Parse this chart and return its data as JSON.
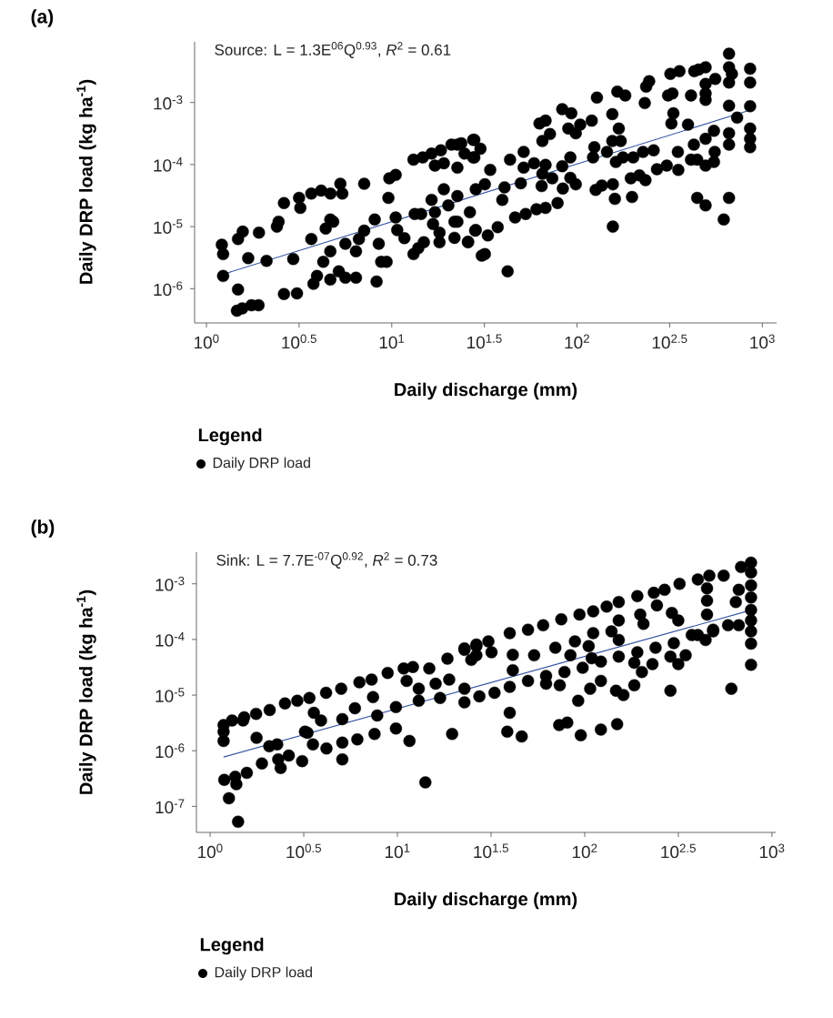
{
  "chart_data": [
    {
      "type": "scatter",
      "title": "(a)",
      "xlabel": "Daily discharge (mm)",
      "ylabel": "Daily DRP load (kg ha$^{-1}$)",
      "legend_title": "Legend",
      "legend": "bottom",
      "log": "xy",
      "annotations": [
        "Source: L = 1.3E$^{06}$Q$^{0.93}$, *R*$^{2}$ = 0.61"
      ],
      "xlim": [
        0.863,
        1194
      ],
      "ylim": [
        2.8e-07,
        0.0095
      ],
      "xticks": [
        {
          "value": 1,
          "label": "10$^{0}$"
        },
        {
          "value": 3.162,
          "label": "10$^{0.5}$"
        },
        {
          "value": 10,
          "label": "10$^{1}$"
        },
        {
          "value": 31.62,
          "label": "10$^{1.5}$"
        },
        {
          "value": 100,
          "label": "10$^{2}$"
        },
        {
          "value": 316.2,
          "label": "10$^{2.5}$"
        },
        {
          "value": 1000,
          "label": "10$^{3}$"
        }
      ],
      "yticks": [
        {
          "value": 1e-06,
          "label": "10$^{-6}$"
        },
        {
          "value": 1e-05,
          "label": "10$^{-5}$"
        },
        {
          "value": 0.0001,
          "label": "10$^{-4}$"
        },
        {
          "value": 0.001,
          "label": "10$^{-3}$"
        }
      ],
      "series": [
        {
          "name": "Daily DRP load",
          "color": "#000000",
          "marker": "circle",
          "x": [
            1.21,
            1.23,
            1.23,
            1.48,
            1.57,
            1.68,
            1.48,
            1.46,
            1.56,
            1.75,
            1.91,
            1.92,
            2.11,
            2.4,
            2.45,
            2.62,
            2.94,
            2.62,
            3.08,
            3.16,
            3.21,
            3.68,
            3.68,
            4.16,
            4.67,
            5.28,
            5.41,
            7.1,
            3.78,
            3.95,
            4.27,
            4.4,
            4.66,
            4.83,
            4.66,
            4.66,
            5.18,
            5.62,
            6.41,
            6.41,
            5.62,
            6.65,
            7.1,
            8.09,
            8.51,
            8.28,
            8.77,
            9.38,
            9.59,
            9.7,
            10.5,
            10.5,
            11.7,
            10.7,
            13.1,
            14.7,
            16.4,
            18.4,
            21.0,
            23.7,
            27.9,
            17.1,
            19.1,
            22.6,
            24.7,
            27.9,
            16.4,
            19.1,
            22.6,
            20.2,
            17.1,
            16.7,
            21.8,
            18.1,
            18.1,
            21.8,
            26.4,
            25.8,
            28.4,
            28.4,
            13.1,
            14.9,
            13.3,
            14.4,
            30.6,
            13.9,
            22.6,
            27.5,
            30.1,
            27.5,
            34.0,
            43.5,
            51.5,
            51.5,
            31.8,
            22.6,
            28.2,
            33.0,
            25.8,
            31.8,
            37.3,
            42.2,
            39.5,
            40.6,
            46.3,
            52.8,
            60.4,
            67.6,
            78.5,
            49.7,
            64.4,
            58.6,
            65.0,
            67.6,
            73.5,
            83.2,
            83.8,
            92.0,
            92.0,
            98.4,
            62.7,
            67.6,
            71.4,
            65.0,
            83.2,
            93.1,
            89.7,
            98.4,
            104,
            120,
            128,
            155,
            165,
            182,
            168,
            155,
            172,
            124,
            122,
            145,
            162,
            177,
            201,
            227,
            259,
            126,
            136,
            156,
            160,
            156,
            198,
            195,
            217,
            234,
            270,
            305,
            352,
            350,
            232,
            236,
            245,
            310,
            327,
            319,
            357,
            323,
            331,
            397,
            412,
            429,
            453,
            494,
            494,
            494,
            494,
            557,
            661,
            661,
            685,
            661,
            661,
            731,
            859,
            859,
            859,
            859,
            859,
            859,
            548,
            661,
            661,
            494,
            427,
            553,
            412,
            445,
            494,
            548,
            445,
            494,
            619,
            661
          ],
          "values": [
            5.1e-06,
            3.6e-06,
            1.6e-06,
            6.3e-06,
            8.3e-06,
            3.1e-06,
            9.7e-07,
            4.4e-07,
            4.8e-07,
            5.4e-07,
            5.4e-07,
            8e-06,
            2.8e-06,
            1e-05,
            1.2e-05,
            2.4e-05,
            3e-06,
            8.2e-07,
            8.4e-07,
            2.9e-05,
            2e-05,
            3.4e-05,
            6.3e-06,
            3.8e-05,
            3.4e-05,
            4.9e-05,
            3.4e-05,
            4.9e-05,
            1.2e-06,
            1.6e-06,
            2.7e-06,
            9.3e-06,
            1.3e-05,
            1.2e-05,
            1.4e-06,
            4e-06,
            1.9e-06,
            1.5e-06,
            1.5e-06,
            4e-06,
            5.3e-06,
            6.3e-06,
            8.6e-06,
            1.3e-05,
            5.3e-06,
            1.3e-06,
            2.7e-06,
            2.7e-06,
            2.9e-05,
            6e-05,
            6.8e-05,
            1.4e-05,
            6.5e-06,
            8.8e-06,
            0.00012,
            0.00013,
            0.00015,
            0.00017,
            0.00021,
            0.00022,
            0.00025,
            9.6e-05,
            0.000105,
            8.9e-05,
            0.00015,
            0.00013,
            2.7e-05,
            4e-05,
            3.1e-05,
            2.2e-05,
            1.7e-05,
            1.1e-05,
            1.2e-05,
            8e-06,
            5.6e-06,
            6.6e-06,
            1.7e-05,
            5.7e-06,
            4e-05,
            8.8e-06,
            3.6e-06,
            5.6e-06,
            1.6e-05,
            1.6e-05,
            3.4e-06,
            4.5e-06,
            0.00021,
            0.00025,
            0.00018,
            0.00013,
            8.2e-05,
            0.00012,
            0.00016,
            8.9e-05,
            4.8e-05,
            1.2e-05,
            8.6e-06,
            7.2e-06,
            5.6e-06,
            3.6e-06,
            9.8e-06,
            1.9e-06,
            2.7e-05,
            4.3e-05,
            1.4e-05,
            1.6e-05,
            1.9e-05,
            2e-05,
            2.4e-05,
            5e-05,
            4.5e-05,
            0.000105,
            7.1e-05,
            9.9e-05,
            6e-05,
            9.4e-05,
            4.1e-05,
            0.00013,
            6.1e-05,
            4.8e-05,
            0.00046,
            0.00051,
            0.00031,
            0.00024,
            0.00078,
            0.00067,
            0.00038,
            0.00032,
            0.00044,
            0.00051,
            0.0012,
            0.00065,
            0.0015,
            0.0013,
            0.00038,
            0.00024,
            0.00024,
            0.00019,
            0.00013,
            0.00016,
            0.00011,
            0.00013,
            0.00013,
            0.00016,
            0.00017,
            3.9e-05,
            4.6e-05,
            4.8e-05,
            2.8e-05,
            1e-05,
            3e-05,
            6e-05,
            6.7e-05,
            5.6e-05,
            8.4e-05,
            9.6e-05,
            8.2e-05,
            0.00016,
            0.00098,
            0.0018,
            0.0022,
            0.0013,
            0.0014,
            0.0029,
            0.0032,
            0.00046,
            0.00067,
            0.00044,
            0.0013,
            0.0032,
            0.0034,
            0.0037,
            0.002,
            0.0014,
            0.0011,
            0.0024,
            0.0061,
            0.0037,
            0.0029,
            0.0021,
            0.00089,
            0.00057,
            0.0035,
            0.0021,
            0.00087,
            0.00038,
            0.00026,
            0.00019,
            0.00035,
            0.00032,
            0.00021,
            0.00026,
            0.00021,
            0.00016,
            0.00012,
            0.00012,
            9.6e-05,
            0.00011,
            2.9e-05,
            2.2e-05,
            1.3e-05,
            2.9e-05
          ]
        },
        {
          "type": "line",
          "color": "#3553a3",
          "marker": "none",
          "x": [
            1.21,
            859
          ],
          "values": [
            1.68e-06,
            0.000755
          ]
        }
      ]
    },
    {
      "type": "scatter",
      "title": "(b)",
      "xlabel": "Daily discharge (mm)",
      "ylabel": "Daily DRP load (kg ha$^{-1}$)",
      "legend_title": "Legend",
      "legend": "bottom",
      "log": "xy",
      "annotations": [
        "Sink: L = 7.7E$^{-07}$Q$^{0.92}$, *R*$^{2}$ = 0.73"
      ],
      "xlim": [
        0.845,
        1047
      ],
      "ylim": [
        3.4e-08,
        0.0037
      ],
      "xticks": [
        {
          "value": 1,
          "label": "10$^{0}$"
        },
        {
          "value": 3.162,
          "label": "10$^{0.5}$"
        },
        {
          "value": 10,
          "label": "10$^{1}$"
        },
        {
          "value": 31.62,
          "label": "10$^{1.5}$"
        },
        {
          "value": 100,
          "label": "10$^{2}$"
        },
        {
          "value": 316.2,
          "label": "10$^{2.5}$"
        },
        {
          "value": 1000,
          "label": "10$^{3}$"
        }
      ],
      "yticks": [
        {
          "value": 1e-07,
          "label": "10$^{-7}$"
        },
        {
          "value": 1e-06,
          "label": "10$^{-6}$"
        },
        {
          "value": 1e-05,
          "label": "10$^{-5}$"
        },
        {
          "value": 0.0001,
          "label": "10$^{-4}$"
        },
        {
          "value": 0.001,
          "label": "10$^{-3}$"
        }
      ],
      "series": [
        {
          "name": "Daily DRP load",
          "color": "#000000",
          "marker": "circle",
          "x": [
            1.31,
            1.52,
            1.76,
            2.08,
            2.51,
            2.92,
            3.39,
            4.16,
            5.01,
            6.27,
            7.28,
            8.87,
            10.8,
            12.1,
            14.8,
            18.5,
            22.8,
            26.4,
            7.41,
            11.2,
            13.0,
            13.0,
            16.0,
            18.9,
            24.8,
            3.58,
            5.93,
            9.82,
            16.9,
            22.8,
            1.18,
            1.18,
            1.18,
            1.19,
            1.36,
            1.38,
            1.26,
            1.41,
            1.77,
            1.57,
            1.89,
            2.28,
            2.07,
            2.31,
            2.38,
            2.63,
            3.1,
            3.31,
            3.54,
            4.18,
            3.21,
            5.08,
            5.08,
            6.11,
            7.55,
            9.82,
            11.6,
            14.1,
            5.08,
            7.8,
            19.6,
            38.6,
            46.1,
            73.1,
            80.7,
            95.3,
            122,
            149,
            1.5,
            3.91,
            22.8,
            26.4,
            30.6,
            39.8,
            49.8,
            60.0,
            75.0,
            93.8,
            111,
            131,
            152,
            191,
            234,
            267,
            321,
            402,
            463,
            552,
            684,
            773,
            773,
            773,
            773,
            773,
            773,
            773,
            773,
            773,
            665,
            641,
            665,
            607,
            450,
            450,
            450,
            442,
            583,
            485,
            402,
            22.8,
            27.4,
            33.0,
            39.8,
            49.8,
            62.2,
            78.0,
            97.5,
            122,
            152,
            191,
            239,
            299,
            373,
            485,
            26.4,
            31.8,
            41.3,
            53.7,
            69.7,
            88.7,
            105,
            111,
            152,
            206,
            152,
            198,
            243,
            292,
            316,
            287,
            316,
            346,
            287,
            230,
            202,
            184,
            161,
            147,
            122,
            107,
            92.3,
            73.6,
            62.2,
            41.3,
            39.8,
            184,
            109,
            83.9,
            139
          ],
          "values": [
            3.5e-06,
            4e-06,
            4.6e-06,
            5.4e-06,
            7.1e-06,
            7.9e-06,
            8.9e-06,
            1.1e-05,
            1.3e-05,
            1.7e-05,
            1.9e-05,
            2.5e-05,
            3e-05,
            3.2e-05,
            3e-05,
            4.5e-05,
            6.5e-05,
            7.6e-05,
            9.2e-06,
            1.8e-05,
            1.3e-05,
            7.9e-06,
            1.6e-05,
            1.9e-05,
            4.3e-05,
            4.8e-06,
            5.8e-06,
            6.1e-06,
            8.9e-06,
            1.3e-05,
            2.9e-06,
            2.2e-06,
            1.5e-06,
            3e-07,
            3.4e-07,
            2.5e-07,
            1.4e-07,
            5.3e-08,
            1.7e-06,
            4e-07,
            5.9e-07,
            1.3e-06,
            1.2e-06,
            7e-07,
            4.9e-07,
            8.2e-07,
            6.5e-07,
            2.1e-06,
            1.3e-06,
            1.1e-06,
            2.2e-06,
            7e-07,
            1.4e-06,
            1.6e-06,
            2e-06,
            2.5e-06,
            1.5e-06,
            2.7e-07,
            3.7e-06,
            4.3e-06,
            2e-06,
            2.2e-06,
            1.8e-06,
            2.9e-06,
            3.2e-06,
            1.9e-06,
            2.4e-06,
            3e-06,
            3.5e-06,
            3.5e-06,
            6.9e-05,
            8.1e-05,
            9.2e-05,
            0.00013,
            0.00015,
            0.00018,
            0.00023,
            0.00028,
            0.00032,
            0.00039,
            0.00047,
            0.0006,
            0.00069,
            0.00078,
            0.001,
            0.0012,
            0.0014,
            0.0014,
            0.002,
            0.0024,
            0.0016,
            0.00094,
            0.00057,
            0.00034,
            0.00022,
            0.00014,
            8.4e-05,
            3.5e-05,
            0.00078,
            0.00047,
            0.00018,
            1.3e-05,
            0.00083,
            0.0005,
            0.00028,
            9.8e-05,
            0.00018,
            0.00014,
            0.00012,
            7.4e-06,
            9.5e-06,
            1.1e-05,
            1.4e-05,
            1.8e-05,
            2.2e-05,
            2.6e-05,
            3.1e-05,
            4e-05,
            4.9e-05,
            5.9e-05,
            7.1e-05,
            8.6e-05,
            0.00012,
            0.00015,
            5.2e-05,
            5.9e-05,
            5.3e-05,
            5.2e-05,
            7.1e-05,
            9.2e-05,
            7.6e-05,
            0.00013,
            9.8e-05,
            0.00019,
            0.00022,
            0.00028,
            0.00041,
            0.0003,
            0.00022,
            4.9e-05,
            3.6e-05,
            5.2e-05,
            1.2e-05,
            3.6e-05,
            2.6e-05,
            1.5e-05,
            1e-05,
            1.2e-05,
            1.8e-05,
            1.3e-05,
            7.9e-06,
            1.5e-05,
            1.6e-05,
            2.8e-05,
            4.8e-06,
            3.8e-05,
            4.6e-05,
            5.2e-05,
            0.00014
          ]
        },
        {
          "type": "line",
          "color": "#3553a3",
          "marker": "none",
          "x": [
            1.18,
            782
          ],
          "values": [
            7.7e-07,
            0.00034
          ]
        }
      ]
    }
  ]
}
